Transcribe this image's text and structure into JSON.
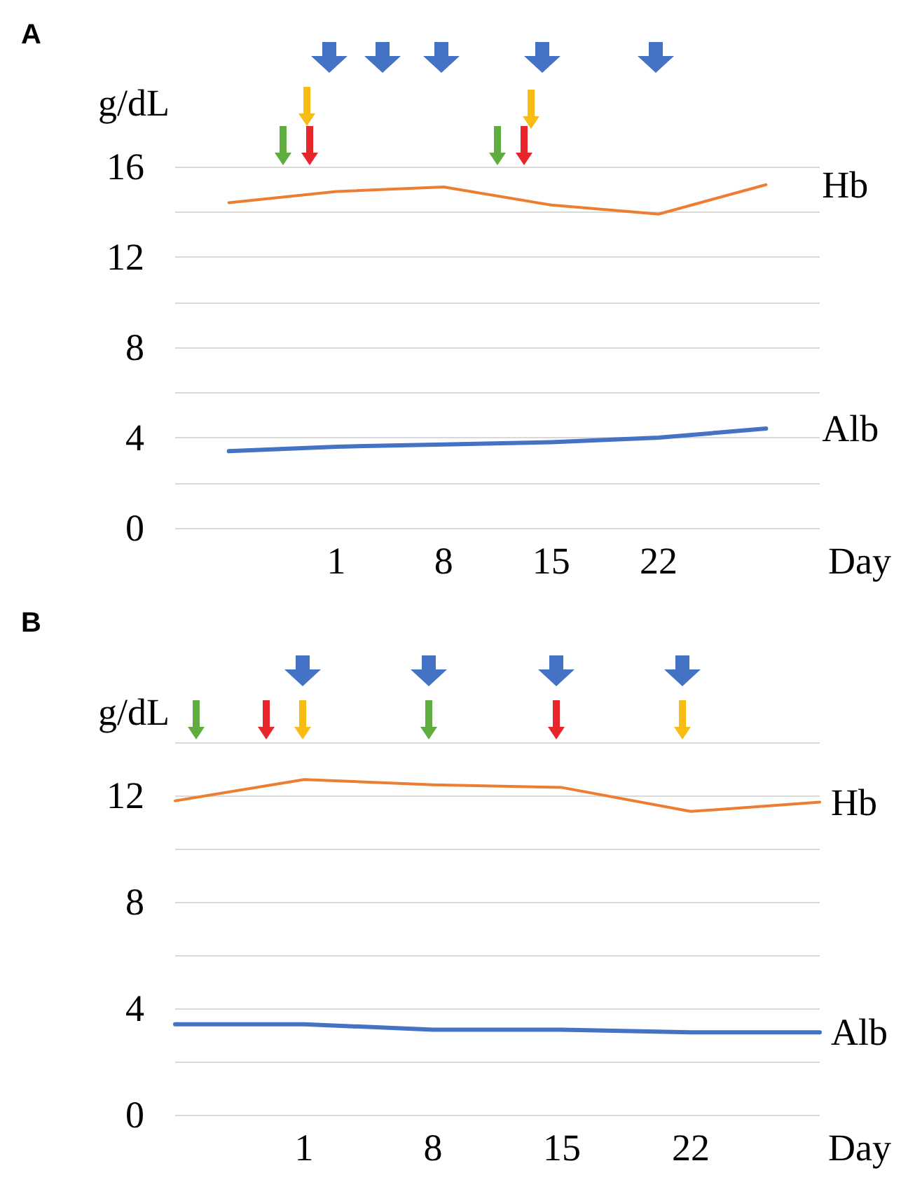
{
  "chart_data": [
    {
      "type": "line",
      "title": "A",
      "xlabel": "Day",
      "ylabel": "g/dL",
      "categories": [
        null,
        "1",
        "8",
        "15",
        "22",
        null
      ],
      "series": [
        {
          "name": "Hb",
          "color": "#ed7d31",
          "values": [
            14.4,
            14.9,
            15.1,
            14.3,
            13.9,
            15.2
          ]
        },
        {
          "name": "Alb",
          "color": "#4472c4",
          "values": [
            3.4,
            3.6,
            3.7,
            3.8,
            4.0,
            4.4
          ]
        }
      ],
      "ylim": [
        0,
        16
      ],
      "yticks": [
        0,
        {
          "value": 2,
          "label": null
        },
        4,
        {
          "value": 6,
          "label": null
        },
        8,
        {
          "value": 10,
          "label": null
        },
        12,
        {
          "value": 14,
          "label": null
        },
        16
      ],
      "grid": "y",
      "legend": false,
      "marker": "none",
      "line_style": "solid"
    },
    {
      "type": "line",
      "title": "B",
      "xlabel": "Day",
      "ylabel": "g/dL",
      "categories": [
        null,
        "1",
        "8",
        "15",
        "22",
        null
      ],
      "series": [
        {
          "name": "Hb",
          "color": "#ed7d31",
          "values": [
            11.8,
            12.6,
            12.4,
            12.3,
            11.4,
            11.75
          ]
        },
        {
          "name": "Alb",
          "color": "#4472c4",
          "values": [
            3.4,
            3.4,
            3.2,
            3.2,
            3.1,
            3.1
          ]
        }
      ],
      "ylim": [
        0,
        14
      ],
      "yticks": [
        0,
        {
          "value": 2,
          "label": null
        },
        4,
        {
          "value": 6,
          "label": null
        },
        8,
        {
          "value": 10,
          "label": null
        },
        12,
        {
          "value": 14,
          "label": null
        }
      ],
      "grid": "y",
      "legend": false,
      "marker": "none",
      "line_style": "solid"
    }
  ]
}
